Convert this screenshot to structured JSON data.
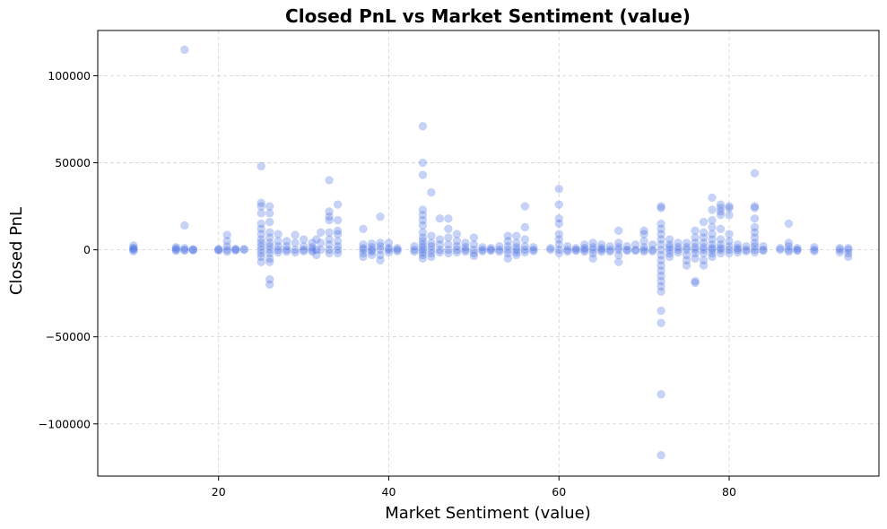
{
  "chart_data": {
    "type": "scatter",
    "title": "Closed PnL vs Market Sentiment (value)",
    "xlabel": "Market Sentiment (value)",
    "ylabel": "Closed PnL",
    "xlim": [
      5.8,
      97.6
    ],
    "ylim": [
      -130000,
      126000
    ],
    "xticks": [
      20,
      40,
      60,
      80
    ],
    "xtick_labels": [
      "20",
      "40",
      "60",
      "80"
    ],
    "yticks": [
      -100000,
      -50000,
      0,
      50000,
      100000
    ],
    "ytick_labels": [
      "−100000",
      "−50000",
      "0",
      "50000",
      "100000"
    ],
    "grid": true,
    "marker_color": "#4169e1",
    "marker_alpha": 0.3,
    "points": [
      [
        10,
        2500
      ],
      [
        10,
        1200
      ],
      [
        10,
        0
      ],
      [
        10,
        -800
      ],
      [
        10,
        500
      ],
      [
        15,
        1500
      ],
      [
        15,
        0
      ],
      [
        15,
        -500
      ],
      [
        15,
        800
      ],
      [
        16,
        115000
      ],
      [
        16,
        14000
      ],
      [
        16,
        1000
      ],
      [
        16,
        0
      ],
      [
        16,
        -400
      ],
      [
        17,
        300
      ],
      [
        17,
        0
      ],
      [
        17,
        -300
      ],
      [
        20,
        0
      ],
      [
        20,
        500
      ],
      [
        20,
        -400
      ],
      [
        21,
        8500
      ],
      [
        21,
        5000
      ],
      [
        21,
        2000
      ],
      [
        21,
        0
      ],
      [
        21,
        -1000
      ],
      [
        22,
        0
      ],
      [
        22,
        600
      ],
      [
        22,
        -300
      ],
      [
        23,
        0
      ],
      [
        23,
        400
      ],
      [
        25,
        48000
      ],
      [
        25,
        27000
      ],
      [
        25,
        25000
      ],
      [
        25,
        21000
      ],
      [
        25,
        15000
      ],
      [
        25,
        12000
      ],
      [
        25,
        9000
      ],
      [
        25,
        6000
      ],
      [
        25,
        4000
      ],
      [
        25,
        2000
      ],
      [
        25,
        0
      ],
      [
        25,
        -2000
      ],
      [
        25,
        -4000
      ],
      [
        25,
        -7000
      ],
      [
        26,
        25000
      ],
      [
        26,
        21000
      ],
      [
        26,
        16000
      ],
      [
        26,
        10000
      ],
      [
        26,
        7000
      ],
      [
        26,
        4000
      ],
      [
        26,
        2000
      ],
      [
        26,
        0
      ],
      [
        26,
        -2000
      ],
      [
        26,
        -5000
      ],
      [
        26,
        -7000
      ],
      [
        26,
        -17000
      ],
      [
        26,
        -20000
      ],
      [
        27,
        9000
      ],
      [
        27,
        5000
      ],
      [
        27,
        2000
      ],
      [
        27,
        0
      ],
      [
        27,
        -1500
      ],
      [
        28,
        5000
      ],
      [
        28,
        2000
      ],
      [
        28,
        0
      ],
      [
        28,
        -1000
      ],
      [
        29,
        8500
      ],
      [
        29,
        4000
      ],
      [
        29,
        0
      ],
      [
        29,
        -1500
      ],
      [
        30,
        6000
      ],
      [
        30,
        2000
      ],
      [
        30,
        0
      ],
      [
        30,
        -800
      ],
      [
        31,
        4000
      ],
      [
        31,
        1500
      ],
      [
        31,
        0
      ],
      [
        31,
        -1000
      ],
      [
        31.5,
        6000
      ],
      [
        31.5,
        0
      ],
      [
        31.5,
        -3000
      ],
      [
        32,
        10000
      ],
      [
        32,
        4000
      ],
      [
        32,
        0
      ],
      [
        33,
        40000
      ],
      [
        33,
        22000
      ],
      [
        33,
        19000
      ],
      [
        33,
        17000
      ],
      [
        33,
        10000
      ],
      [
        33,
        6000
      ],
      [
        33,
        3000
      ],
      [
        33,
        0
      ],
      [
        33,
        -2000
      ],
      [
        34,
        26000
      ],
      [
        34,
        17000
      ],
      [
        34,
        11000
      ],
      [
        34,
        9000
      ],
      [
        34,
        5000
      ],
      [
        34,
        2000
      ],
      [
        34,
        0
      ],
      [
        34,
        -2000
      ],
      [
        37,
        12000
      ],
      [
        37,
        3000
      ],
      [
        37,
        1000
      ],
      [
        37,
        0
      ],
      [
        37,
        -2000
      ],
      [
        37,
        -4000
      ],
      [
        38,
        3500
      ],
      [
        38,
        1500
      ],
      [
        38,
        0
      ],
      [
        38,
        -1000
      ],
      [
        38,
        -3000
      ],
      [
        39,
        19000
      ],
      [
        39,
        4000
      ],
      [
        39,
        2000
      ],
      [
        39,
        0
      ],
      [
        39,
        -3000
      ],
      [
        39,
        -6000
      ],
      [
        40,
        4000
      ],
      [
        40,
        1000
      ],
      [
        40,
        0
      ],
      [
        40,
        -1500
      ],
      [
        41,
        1000
      ],
      [
        41,
        0
      ],
      [
        41,
        -800
      ],
      [
        43,
        2000
      ],
      [
        43,
        0
      ],
      [
        43,
        -1000
      ],
      [
        44,
        71000
      ],
      [
        44,
        50000
      ],
      [
        44,
        43000
      ],
      [
        44,
        23000
      ],
      [
        44,
        20000
      ],
      [
        44,
        17000
      ],
      [
        44,
        14000
      ],
      [
        44,
        10000
      ],
      [
        44,
        7000
      ],
      [
        44,
        5000
      ],
      [
        44,
        3000
      ],
      [
        44,
        1500
      ],
      [
        44,
        0
      ],
      [
        44,
        -1500
      ],
      [
        44,
        -3000
      ],
      [
        44,
        -5000
      ],
      [
        45,
        33000
      ],
      [
        45,
        8000
      ],
      [
        45,
        4000
      ],
      [
        45,
        2000
      ],
      [
        45,
        0
      ],
      [
        45,
        -2000
      ],
      [
        45,
        -4000
      ],
      [
        46,
        18000
      ],
      [
        46,
        6000
      ],
      [
        46,
        3000
      ],
      [
        46,
        0
      ],
      [
        46,
        -1500
      ],
      [
        47,
        18000
      ],
      [
        47,
        12000
      ],
      [
        47,
        7000
      ],
      [
        47,
        3000
      ],
      [
        47,
        0
      ],
      [
        47,
        -2000
      ],
      [
        48,
        9000
      ],
      [
        48,
        5000
      ],
      [
        48,
        2000
      ],
      [
        48,
        0
      ],
      [
        48,
        -1500
      ],
      [
        49,
        4000
      ],
      [
        49,
        1500
      ],
      [
        49,
        0
      ],
      [
        49,
        -1000
      ],
      [
        50,
        7000
      ],
      [
        50,
        3000
      ],
      [
        50,
        0
      ],
      [
        50,
        -2000
      ],
      [
        50,
        -3500
      ],
      [
        51,
        1500
      ],
      [
        51,
        0
      ],
      [
        51,
        -800
      ],
      [
        52,
        1000
      ],
      [
        52,
        0
      ],
      [
        52,
        -500
      ],
      [
        53,
        2000
      ],
      [
        53,
        0
      ],
      [
        53,
        -1000
      ],
      [
        54,
        8000
      ],
      [
        54,
        5000
      ],
      [
        54,
        2000
      ],
      [
        54,
        0
      ],
      [
        54,
        -2000
      ],
      [
        54,
        -5000
      ],
      [
        55,
        8000
      ],
      [
        55,
        4000
      ],
      [
        55,
        1500
      ],
      [
        55,
        0
      ],
      [
        55,
        -1500
      ],
      [
        55,
        -3000
      ],
      [
        56,
        25000
      ],
      [
        56,
        13000
      ],
      [
        56,
        6000
      ],
      [
        56,
        2000
      ],
      [
        56,
        0
      ],
      [
        56,
        -1500
      ],
      [
        57,
        1500
      ],
      [
        57,
        0
      ],
      [
        57,
        -700
      ],
      [
        59,
        1000
      ],
      [
        59,
        0
      ],
      [
        60,
        35000
      ],
      [
        60,
        26000
      ],
      [
        60,
        18000
      ],
      [
        60,
        15000
      ],
      [
        60,
        9000
      ],
      [
        60,
        6000
      ],
      [
        60,
        3000
      ],
      [
        60,
        0
      ],
      [
        60,
        -2000
      ],
      [
        61,
        2000
      ],
      [
        61,
        0
      ],
      [
        61,
        -1000
      ],
      [
        62,
        1000
      ],
      [
        62,
        0
      ],
      [
        62,
        -500
      ],
      [
        63,
        3000
      ],
      [
        63,
        1000
      ],
      [
        63,
        0
      ],
      [
        63,
        -1000
      ],
      [
        64,
        4000
      ],
      [
        64,
        1500
      ],
      [
        64,
        0
      ],
      [
        64,
        -2000
      ],
      [
        64,
        -5000
      ],
      [
        65,
        3000
      ],
      [
        65,
        1000
      ],
      [
        65,
        0
      ],
      [
        65,
        -1000
      ],
      [
        66,
        2000
      ],
      [
        66,
        0
      ],
      [
        66,
        -1000
      ],
      [
        67,
        11000
      ],
      [
        67,
        4000
      ],
      [
        67,
        1500
      ],
      [
        67,
        0
      ],
      [
        67,
        -3000
      ],
      [
        67,
        -7000
      ],
      [
        68,
        2000
      ],
      [
        68,
        0
      ],
      [
        68,
        -500
      ],
      [
        69,
        3000
      ],
      [
        69,
        0
      ],
      [
        69,
        -500
      ],
      [
        70,
        11000
      ],
      [
        70,
        9000
      ],
      [
        70,
        5000
      ],
      [
        70,
        1500
      ],
      [
        70,
        0
      ],
      [
        70,
        -1000
      ],
      [
        71,
        3000
      ],
      [
        71,
        0
      ],
      [
        71,
        -800
      ],
      [
        72,
        25000
      ],
      [
        72,
        24000
      ],
      [
        72,
        15000
      ],
      [
        72,
        12000
      ],
      [
        72,
        9000
      ],
      [
        72,
        6000
      ],
      [
        72,
        3000
      ],
      [
        72,
        0
      ],
      [
        72,
        -3000
      ],
      [
        72,
        -6000
      ],
      [
        72,
        -9000
      ],
      [
        72,
        -12000
      ],
      [
        72,
        -15000
      ],
      [
        72,
        -18000
      ],
      [
        72,
        -21000
      ],
      [
        72,
        -24000
      ],
      [
        72,
        -35000
      ],
      [
        72,
        -42000
      ],
      [
        72,
        -83000
      ],
      [
        72,
        -118000
      ],
      [
        73,
        6000
      ],
      [
        73,
        3000
      ],
      [
        73,
        1500
      ],
      [
        73,
        0
      ],
      [
        73,
        -2000
      ],
      [
        73,
        -4000
      ],
      [
        74,
        4000
      ],
      [
        74,
        1500
      ],
      [
        74,
        0
      ],
      [
        74,
        -1500
      ],
      [
        75,
        4000
      ],
      [
        75,
        1500
      ],
      [
        75,
        0
      ],
      [
        75,
        -3000
      ],
      [
        75,
        -6000
      ],
      [
        75,
        -9000
      ],
      [
        76,
        11000
      ],
      [
        76,
        7000
      ],
      [
        76,
        4000
      ],
      [
        76,
        1500
      ],
      [
        76,
        0
      ],
      [
        76,
        -2000
      ],
      [
        76,
        -5000
      ],
      [
        76,
        -18000
      ],
      [
        76,
        -19000
      ],
      [
        77,
        16000
      ],
      [
        77,
        10000
      ],
      [
        77,
        7000
      ],
      [
        77,
        4000
      ],
      [
        77,
        1500
      ],
      [
        77,
        0
      ],
      [
        77,
        -2000
      ],
      [
        77,
        -6000
      ],
      [
        77,
        -9000
      ],
      [
        78,
        30000
      ],
      [
        78,
        23000
      ],
      [
        78,
        17000
      ],
      [
        78,
        13000
      ],
      [
        78,
        9000
      ],
      [
        78,
        6000
      ],
      [
        78,
        3000
      ],
      [
        78,
        1000
      ],
      [
        78,
        0
      ],
      [
        78,
        -2000
      ],
      [
        78,
        -4000
      ],
      [
        79,
        26000
      ],
      [
        79,
        24000
      ],
      [
        79,
        22000
      ],
      [
        79,
        20000
      ],
      [
        79,
        12000
      ],
      [
        79,
        6000
      ],
      [
        79,
        3000
      ],
      [
        79,
        1000
      ],
      [
        79,
        0
      ],
      [
        79,
        -2000
      ],
      [
        80,
        25000
      ],
      [
        80,
        24000
      ],
      [
        80,
        20000
      ],
      [
        80,
        9000
      ],
      [
        80,
        5000
      ],
      [
        80,
        2000
      ],
      [
        80,
        0
      ],
      [
        80,
        -2000
      ],
      [
        81,
        3000
      ],
      [
        81,
        1000
      ],
      [
        81,
        0
      ],
      [
        81,
        -1500
      ],
      [
        82,
        2000
      ],
      [
        82,
        0
      ],
      [
        82,
        -800
      ],
      [
        83,
        44000
      ],
      [
        83,
        25000
      ],
      [
        83,
        24000
      ],
      [
        83,
        18000
      ],
      [
        83,
        13000
      ],
      [
        83,
        10000
      ],
      [
        83,
        7000
      ],
      [
        83,
        4000
      ],
      [
        83,
        2000
      ],
      [
        83,
        0
      ],
      [
        83,
        -1500
      ],
      [
        84,
        2000
      ],
      [
        84,
        0
      ],
      [
        84,
        -500
      ],
      [
        86,
        1000
      ],
      [
        86,
        0
      ],
      [
        87,
        15000
      ],
      [
        87,
        4000
      ],
      [
        87,
        2000
      ],
      [
        87,
        0
      ],
      [
        87,
        -1000
      ],
      [
        88,
        1000
      ],
      [
        88,
        0
      ],
      [
        88,
        -500
      ],
      [
        90,
        1500
      ],
      [
        90,
        0
      ],
      [
        90,
        -800
      ],
      [
        93,
        1000
      ],
      [
        93,
        0
      ],
      [
        93,
        -1500
      ],
      [
        94,
        1000
      ],
      [
        94,
        0
      ],
      [
        94,
        -2000
      ],
      [
        94,
        -4000
      ]
    ]
  }
}
